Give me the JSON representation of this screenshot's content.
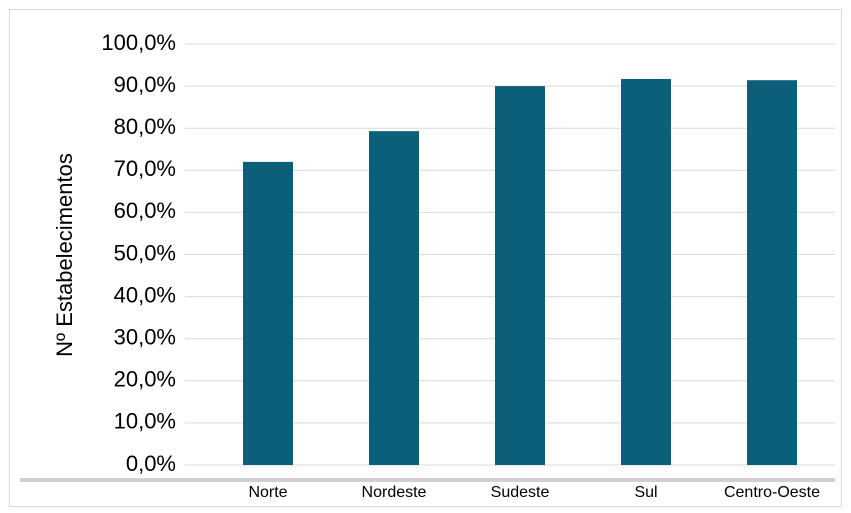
{
  "chart_data": {
    "type": "bar",
    "y_label": "Nº Estabelecimentos",
    "categories": [
      "Norte",
      "Nordeste",
      "Sudeste",
      "Sul",
      "Centro-Oeste"
    ],
    "values": [
      72.0,
      79.3,
      90.0,
      91.7,
      91.4
    ],
    "color": "#0b5f78",
    "ylim": [
      0,
      100
    ],
    "yticks": [
      {
        "value": 0,
        "label": "0,0%"
      },
      {
        "value": 10,
        "label": "10,0%"
      },
      {
        "value": 20,
        "label": "20,0%"
      },
      {
        "value": 30,
        "label": "30,0%"
      },
      {
        "value": 40,
        "label": "40,0%"
      },
      {
        "value": 50,
        "label": "50,0%"
      },
      {
        "value": 60,
        "label": "60,0%"
      },
      {
        "value": 70,
        "label": "70,0%"
      },
      {
        "value": 80,
        "label": "80,0%"
      },
      {
        "value": 90,
        "label": "90,0%"
      },
      {
        "value": 100,
        "label": "100,0%"
      }
    ],
    "grid": true
  }
}
